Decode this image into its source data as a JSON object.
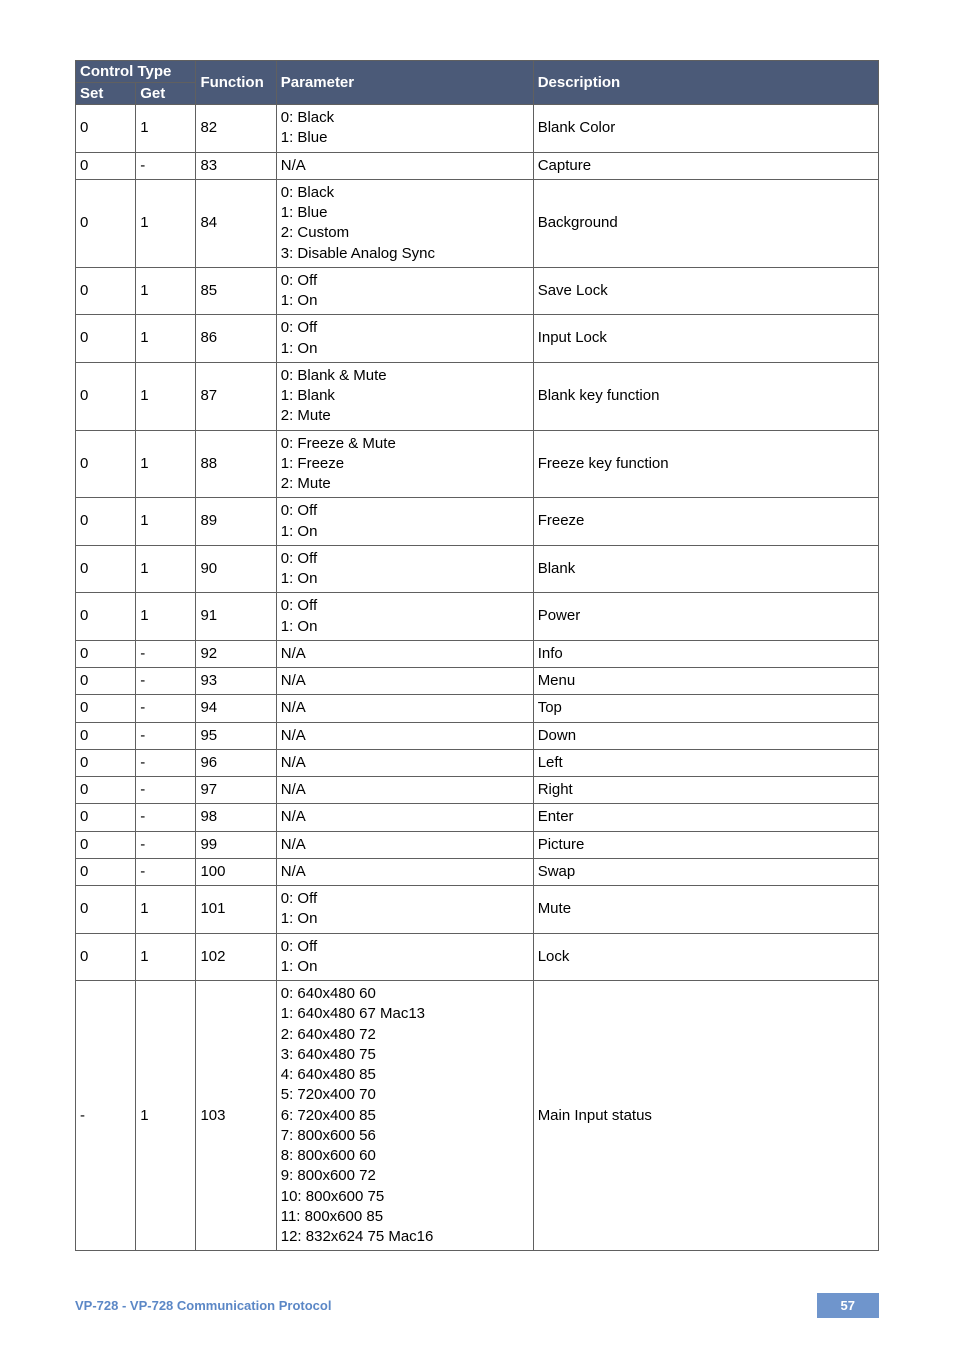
{
  "colors": {
    "header_bg": "#4b5a78",
    "header_fg": "#ffffff",
    "border": "#606060",
    "footer_text": "#5b87c6",
    "badge_bg": "#6f95cc",
    "badge_fg": "#ffffff",
    "page_bg": "#ffffff",
    "cell_text": "#000000"
  },
  "header": {
    "control_type": "Control Type",
    "set": "Set",
    "get": "Get",
    "function": "Function",
    "parameter": "Parameter",
    "description": "Description"
  },
  "rows": [
    {
      "set": "0",
      "get": "1",
      "func": "82",
      "param": "0: Black\n1: Blue",
      "desc": "Blank Color"
    },
    {
      "set": "0",
      "get": "-",
      "func": "83",
      "param": "N/A",
      "desc": "Capture"
    },
    {
      "set": "0",
      "get": "1",
      "func": "84",
      "param": "0: Black\n1: Blue\n2: Custom\n3: Disable Analog Sync",
      "desc": "Background"
    },
    {
      "set": "0",
      "get": "1",
      "func": "85",
      "param": "0: Off\n1: On",
      "desc": "Save Lock"
    },
    {
      "set": "0",
      "get": "1",
      "func": "86",
      "param": "0: Off\n1: On",
      "desc": "Input Lock"
    },
    {
      "set": "0",
      "get": "1",
      "func": "87",
      "param": "0: Blank & Mute\n1: Blank\n2: Mute",
      "desc": "Blank key function"
    },
    {
      "set": "0",
      "get": "1",
      "func": "88",
      "param": "0: Freeze & Mute\n1: Freeze\n2: Mute",
      "desc": "Freeze key function"
    },
    {
      "set": "0",
      "get": "1",
      "func": "89",
      "param": "0: Off\n1: On",
      "desc": "Freeze"
    },
    {
      "set": "0",
      "get": "1",
      "func": "90",
      "param": "0: Off\n1: On",
      "desc": "Blank"
    },
    {
      "set": "0",
      "get": "1",
      "func": "91",
      "param": "0: Off\n1: On",
      "desc": "Power"
    },
    {
      "set": "0",
      "get": "-",
      "func": "92",
      "param": "N/A",
      "desc": "Info"
    },
    {
      "set": "0",
      "get": "-",
      "func": "93",
      "param": "N/A",
      "desc": "Menu"
    },
    {
      "set": "0",
      "get": "-",
      "func": "94",
      "param": "N/A",
      "desc": "Top"
    },
    {
      "set": "0",
      "get": "-",
      "func": "95",
      "param": "N/A",
      "desc": "Down"
    },
    {
      "set": "0",
      "get": "-",
      "func": "96",
      "param": "N/A",
      "desc": "Left"
    },
    {
      "set": "0",
      "get": "-",
      "func": "97",
      "param": "N/A",
      "desc": "Right"
    },
    {
      "set": "0",
      "get": "-",
      "func": "98",
      "param": "N/A",
      "desc": "Enter"
    },
    {
      "set": "0",
      "get": "-",
      "func": "99",
      "param": "N/A",
      "desc": "Picture"
    },
    {
      "set": "0",
      "get": "-",
      "func": "100",
      "param": "N/A",
      "desc": "Swap"
    },
    {
      "set": "0",
      "get": "1",
      "func": "101",
      "param": "0: Off\n1: On",
      "desc": "Mute"
    },
    {
      "set": "0",
      "get": "1",
      "func": "102",
      "param": "0: Off\n1: On",
      "desc": "Lock"
    },
    {
      "set": "-",
      "get": "1",
      "func": "103",
      "param": "0: 640x480 60\n1: 640x480 67 Mac13\n2: 640x480 72\n3: 640x480 75\n4: 640x480 85\n5: 720x400 70\n6: 720x400 85\n7: 800x600 56\n8: 800x600 60\n9: 800x600 72\n10: 800x600 75\n11: 800x600 85\n12: 832x624 75 Mac16",
      "desc": "Main Input status"
    }
  ],
  "footer": {
    "text": "VP-728 - VP-728 Communication Protocol",
    "page": "57"
  }
}
